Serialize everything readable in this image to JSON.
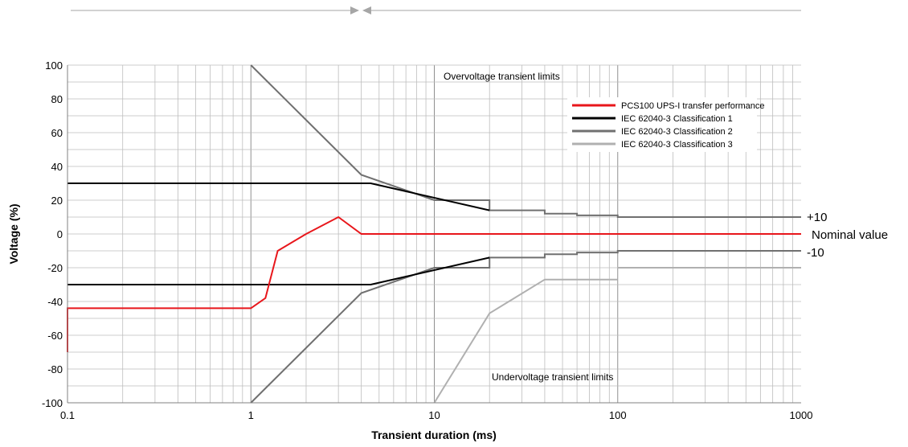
{
  "chart_data": {
    "type": "line",
    "title": "",
    "xlabel": "Transient duration (ms)",
    "ylabel": "Voltage (%)",
    "x_scale": "log",
    "xlim": [
      0.1,
      1000
    ],
    "ylim": [
      -100,
      100
    ],
    "x_ticks": [
      0.1,
      1,
      10,
      100,
      1000
    ],
    "x_tick_labels": [
      "0.1",
      "1",
      "10",
      "100",
      "1000"
    ],
    "y_ticks": [
      -100,
      -80,
      -60,
      -40,
      -20,
      0,
      20,
      40,
      60,
      80,
      100
    ],
    "y_tick_labels": [
      "-100",
      "-80",
      "-60",
      "-40",
      "-20",
      "0",
      "20",
      "40",
      "60",
      "80",
      "100"
    ],
    "grid": true,
    "legend_position": "top-right",
    "annotations": {
      "overvoltage": "Overvoltage transient limits",
      "undervoltage": "Undervoltage transient limits",
      "plus10": "+10",
      "nominal": "Nominal value",
      "minus10": "-10"
    },
    "series": [
      {
        "name": "PCS100 UPS-I transfer performance",
        "color": "#e8161b",
        "segments": [
          [
            [
              0.1,
              -70
            ],
            [
              0.1,
              -44
            ],
            [
              1,
              -44
            ],
            [
              1.2,
              -38
            ],
            [
              1.4,
              -10
            ],
            [
              2,
              0
            ],
            [
              3,
              10
            ],
            [
              4,
              0
            ],
            [
              1000,
              0
            ]
          ]
        ]
      },
      {
        "name": "IEC 62040-3 Classification 1",
        "color": "#000000",
        "segments": [
          [
            [
              0.1,
              30
            ],
            [
              4.5,
              30
            ],
            [
              20,
              14
            ]
          ],
          [
            [
              0.1,
              -30
            ],
            [
              4.5,
              -30
            ],
            [
              20,
              -14
            ]
          ]
        ]
      },
      {
        "name": "IEC 62040-3 Classification 2",
        "color": "#707070",
        "segments": [
          [
            [
              1,
              100
            ],
            [
              4,
              35
            ],
            [
              10,
              20
            ],
            [
              20,
              20
            ],
            [
              20,
              14
            ],
            [
              40,
              14
            ],
            [
              40,
              12
            ],
            [
              60,
              12
            ],
            [
              60,
              11
            ],
            [
              100,
              11
            ],
            [
              100,
              10
            ],
            [
              1000,
              10
            ]
          ],
          [
            [
              1,
              -100
            ],
            [
              4,
              -35
            ],
            [
              10,
              -20
            ],
            [
              20,
              -20
            ],
            [
              20,
              -14
            ],
            [
              40,
              -14
            ],
            [
              40,
              -12
            ],
            [
              60,
              -12
            ],
            [
              60,
              -11
            ],
            [
              100,
              -11
            ],
            [
              100,
              -10
            ],
            [
              1000,
              -10
            ]
          ]
        ]
      },
      {
        "name": "IEC 62040-3 Classification 3",
        "color": "#b0b0b0",
        "segments": [
          [
            [
              10,
              -100
            ],
            [
              20,
              -47
            ],
            [
              40,
              -27
            ],
            [
              100,
              -27
            ]
          ],
          [
            [
              100,
              -20
            ],
            [
              1000,
              -20
            ]
          ]
        ]
      }
    ]
  }
}
